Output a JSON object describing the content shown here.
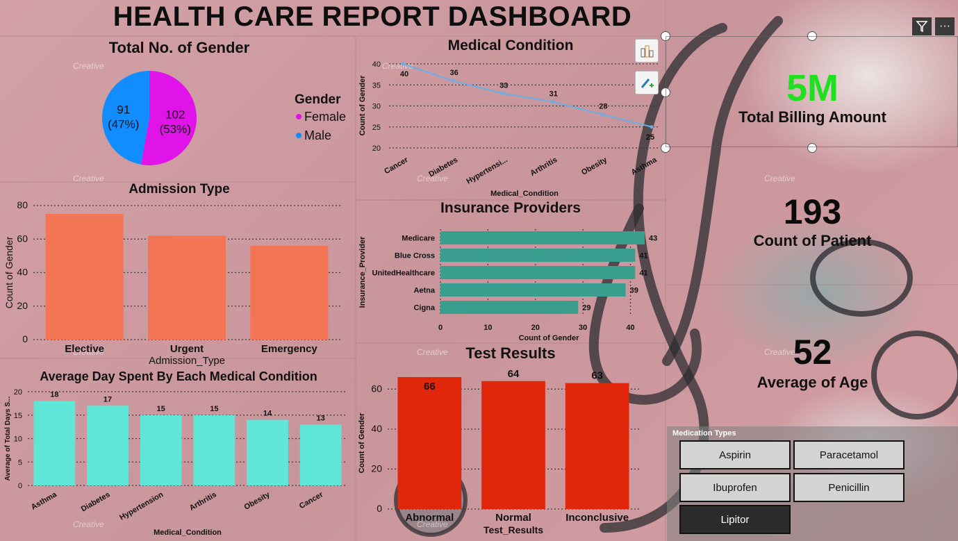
{
  "dashboard": {
    "title": "HEALTH CARE REPORT DASHBOARD"
  },
  "watermark": "Creative",
  "gender": {
    "title": "Total No. of Gender",
    "legend_title": "Gender",
    "slices": [
      {
        "name": "Female",
        "value": 102,
        "pct": "(53%)",
        "color": "#e014e8"
      },
      {
        "name": "Male",
        "value": 91,
        "pct": "(47%)",
        "color": "#118dff"
      }
    ]
  },
  "admission": {
    "title": "Admission Type",
    "xlabel": "Admission_Type",
    "ylabel": "Count of Gender",
    "color": "#f27655"
  },
  "medical_condition": {
    "title": "Medical Condition",
    "xlabel": "Medical_Condition",
    "ylabel": "Count of Gender",
    "color": "#6aaee8"
  },
  "insurance": {
    "title": "Insurance Providers",
    "xlabel": "Count of Gender",
    "ylabel": "Insurance_Provider",
    "color": "#3a9e8f"
  },
  "avg_days": {
    "title": "Average Day Spent By Each Medical Condition",
    "xlabel": "Medical_Condition",
    "ylabel": "Average of Total Days S...",
    "color": "#5fe6d6"
  },
  "test_results": {
    "title": "Test Results",
    "xlabel": "Test_Results",
    "ylabel": "Count of Gender",
    "color": "#e0260b"
  },
  "kpis": {
    "billing": {
      "value": "5M",
      "label": "Total Billing Amount",
      "color": "#1fe01f"
    },
    "patients": {
      "value": "193",
      "label": "Count of Patient"
    },
    "age": {
      "value": "52",
      "label": "Average of Age"
    }
  },
  "medication": {
    "title": "Medication Types",
    "options": [
      "Aspirin",
      "Paracetamol",
      "Ibuprofen",
      "Penicillin",
      "Lipitor"
    ],
    "selected": "Lipitor"
  },
  "toolbar": {
    "filter_icon": "filter-icon",
    "more_icon": "more-options-icon",
    "more_label": "···"
  },
  "chart_data": [
    {
      "type": "pie",
      "title": "Total No. of Gender",
      "legend_title": "Gender",
      "legend_position": "right",
      "categories": [
        "Female",
        "Male"
      ],
      "values": [
        102,
        91
      ],
      "percent_labels": [
        "(53%)",
        "(47%)"
      ]
    },
    {
      "type": "bar",
      "title": "Admission Type",
      "categories": [
        "Elective",
        "Urgent",
        "Emergency"
      ],
      "values": [
        75,
        62,
        56
      ],
      "xlabel": "Admission_Type",
      "ylabel": "Count of Gender",
      "ylim": [
        0,
        80
      ],
      "yticks": [
        0,
        20,
        40,
        60,
        80
      ],
      "grid": true
    },
    {
      "type": "line",
      "title": "Medical Condition",
      "categories": [
        "Cancer",
        "Diabetes",
        "Hypertensi...",
        "Arthritis",
        "Obesity",
        "Asthma"
      ],
      "values": [
        40,
        36,
        33,
        31,
        28,
        25
      ],
      "xlabel": "Medical_Condition",
      "ylabel": "Count of Gender",
      "ylim": [
        20,
        40
      ],
      "yticks": [
        20,
        25,
        30,
        35,
        40
      ],
      "grid": true
    },
    {
      "type": "bar",
      "orientation": "horizontal",
      "title": "Insurance Providers",
      "categories": [
        "Medicare",
        "Blue Cross",
        "UnitedHealthcare",
        "Aetna",
        "Cigna"
      ],
      "values": [
        43,
        41,
        41,
        39,
        29
      ],
      "xlabel": "Count of Gender",
      "ylabel": "Insurance_Provider",
      "xlim": [
        0,
        43
      ],
      "xticks": [
        0,
        10,
        20,
        30,
        40
      ],
      "grid": true
    },
    {
      "type": "bar",
      "title": "Average Day Spent By Each Medical Condition",
      "categories": [
        "Asthma",
        "Diabetes",
        "Hypertension",
        "Arthritis",
        "Obesity",
        "Cancer"
      ],
      "values": [
        18,
        17,
        15,
        15,
        14,
        13
      ],
      "data_labels": [
        "18",
        "17",
        "15",
        "15",
        "14",
        "13"
      ],
      "xlabel": "Medical_Condition",
      "ylabel": "Average of Total Days S...",
      "ylim": [
        0,
        20
      ],
      "yticks": [
        0,
        5,
        10,
        15,
        20
      ],
      "grid": true
    },
    {
      "type": "bar",
      "title": "Test Results",
      "categories": [
        "Abnormal",
        "Normal",
        "Inconclusive"
      ],
      "values": [
        66,
        64,
        63
      ],
      "xlabel": "Test_Results",
      "ylabel": "Count of Gender",
      "ylim": [
        0,
        66
      ],
      "yticks": [
        0,
        20,
        40,
        60
      ],
      "grid": true
    }
  ]
}
